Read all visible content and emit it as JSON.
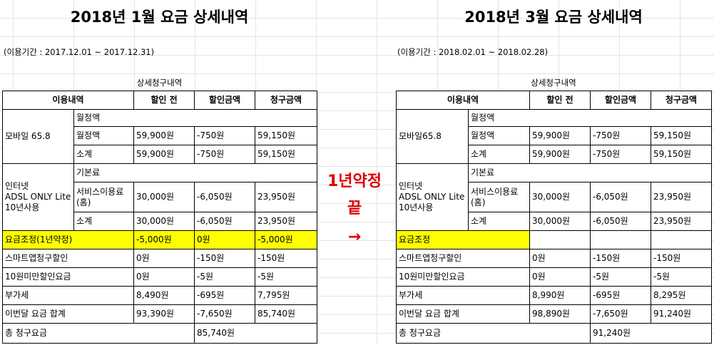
{
  "left": {
    "title": "2018년 1월 요금 상세내역",
    "period": "(이용기간 : 2017.12.01 ~ 2017.12.31)",
    "caption": "상세청구내역",
    "headers": [
      "이용내역",
      "할인 전",
      "할인금액",
      "청구금액"
    ],
    "mobile": {
      "label": [
        "모바일 65.8"
      ],
      "rows": [
        [
          "월정액"
        ],
        [
          "월정액",
          "59,900원",
          "-750원",
          "59,150원"
        ],
        [
          "소계",
          "59,900원",
          "-750원",
          "59,150원"
        ]
      ]
    },
    "internet": {
      "label": [
        "인터넷",
        "ADSL ONLY Lite",
        "10년사용"
      ],
      "rows": [
        [
          "기본료"
        ],
        [
          "서비스이용료(홈)",
          "30,000원",
          "-6,050원",
          "23,950원"
        ],
        [
          "소계",
          "30,000원",
          "-6,050원",
          "23,950원"
        ]
      ]
    },
    "rows": [
      [
        "요금조정(1년약정)",
        "-5,000원",
        "0원",
        "-5,000원"
      ],
      [
        "스마트앱청구할인",
        "0원",
        "-150원",
        "-150원"
      ],
      [
        "10원미만할인요금",
        "0원",
        "-5원",
        "-5원"
      ],
      [
        "부가세",
        "8,490원",
        "-695원",
        "7,795원"
      ],
      [
        "이번달 요금 합계",
        "93,390원",
        "-7,650원",
        "85,740원"
      ]
    ],
    "total": [
      "총 청구요금",
      "85,740원"
    ]
  },
  "right": {
    "title": "2018년 3월 요금 상세내역",
    "period": "(이용기간 : 2018.02.01 ~ 2018.02.28)",
    "caption": "상세청구내역",
    "headers": [
      "이용내역",
      "할인 전",
      "할인금액",
      "청구금액"
    ],
    "mobile": {
      "label": [
        "모바일65.8"
      ],
      "rows": [
        [
          "월정액"
        ],
        [
          "월정액",
          "59,900원",
          "-750원",
          "59,150원"
        ],
        [
          "소계",
          "59,900원",
          "-750원",
          "59,150원"
        ]
      ]
    },
    "internet": {
      "label": [
        "인터넷",
        "ADSL ONLY Lite",
        "10년사용"
      ],
      "rows": [
        [
          "기본료"
        ],
        [
          "서비스이용료(홈)",
          "30,000원",
          "-6,050원",
          "23,950원"
        ],
        [
          "소계",
          "30,000원",
          "-6,050원",
          "23,950원"
        ]
      ]
    },
    "rows": [
      [
        "요금조정"
      ],
      [
        "스마트앱청구할인",
        "0원",
        "-150원",
        "-150원"
      ],
      [
        "10원미만할인요금",
        "0원",
        "-5원",
        "-5원"
      ],
      [
        "부가세",
        "8,990원",
        "-695원",
        "8,295원"
      ],
      [
        "이번달 요금 합계",
        "98,890원",
        "-7,650원",
        "91,240원"
      ]
    ],
    "total": [
      "총 청구요금",
      "91,240원"
    ]
  },
  "middle": {
    "line1": "1년약정",
    "line2": "끝",
    "arrow": "→"
  }
}
